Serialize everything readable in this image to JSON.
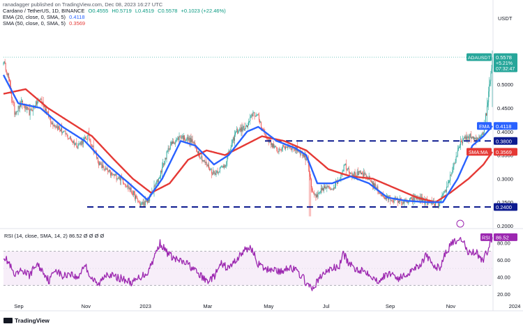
{
  "header": {
    "publisher": "ranadagger published on TradingView.com, Dec 08, 2023 16:27 UTC",
    "symbol": "Cardano / TetherUS, 1D, BINANCE",
    "ohlc": {
      "o": "O0.4555",
      "h": "H0.5719",
      "l": "L0.4519",
      "c": "C0.5578",
      "chg": "+0.1023 (+22.46%)"
    },
    "ema_label": "EMA (20, close, 0, SMA, 5)",
    "ema_value": "0.4118",
    "sma_label": "SMA (50, close, 0, SMA, 5)",
    "sma_value": "0.3569",
    "currency": "USDT"
  },
  "branding": {
    "logo_text": "TradingView"
  },
  "colors": {
    "up": "#26a69a",
    "down": "#ef5350",
    "ema": "#2962ff",
    "sma": "#e53935",
    "rsi": "#9c27b0",
    "level": "#0d1b8f"
  },
  "chart_data": [
    {
      "type": "candlestick",
      "title": "Cardano / TetherUS, 1D, BINANCE",
      "ylabel": "USDT",
      "ylim": [
        0.2,
        0.62
      ],
      "y_ticks": [
        "0.5000",
        "0.4500",
        "0.4000",
        "0.3500",
        "0.3000",
        "0.2500",
        "0.2000"
      ],
      "x_ticks": [
        "Sep",
        "Nov",
        "2023",
        "Mar",
        "May",
        "Jul",
        "Sep",
        "Nov",
        "2024"
      ],
      "x_tick_index": [
        22,
        113,
        192,
        278,
        360,
        440,
        525,
        607,
        692
      ],
      "keyframes": {
        "price": [
          [
            0,
            0.55
          ],
          [
            6,
            0.52
          ],
          [
            15,
            0.44
          ],
          [
            25,
            0.46
          ],
          [
            35,
            0.44
          ],
          [
            50,
            0.47
          ],
          [
            65,
            0.42
          ],
          [
            80,
            0.4
          ],
          [
            100,
            0.37
          ],
          [
            115,
            0.39
          ],
          [
            130,
            0.33
          ],
          [
            145,
            0.31
          ],
          [
            160,
            0.3
          ],
          [
            175,
            0.27
          ],
          [
            185,
            0.245
          ],
          [
            195,
            0.25
          ],
          [
            210,
            0.3
          ],
          [
            225,
            0.37
          ],
          [
            240,
            0.39
          ],
          [
            255,
            0.38
          ],
          [
            270,
            0.34
          ],
          [
            285,
            0.31
          ],
          [
            300,
            0.33
          ],
          [
            315,
            0.4
          ],
          [
            330,
            0.41
          ],
          [
            338,
            0.44
          ],
          [
            345,
            0.43
          ],
          [
            355,
            0.39
          ],
          [
            370,
            0.36
          ],
          [
            385,
            0.37
          ],
          [
            400,
            0.36
          ],
          [
            412,
            0.34
          ],
          [
            418,
            0.27
          ],
          [
            425,
            0.26
          ],
          [
            432,
            0.28
          ],
          [
            445,
            0.28
          ],
          [
            455,
            0.3
          ],
          [
            462,
            0.33
          ],
          [
            472,
            0.31
          ],
          [
            485,
            0.31
          ],
          [
            495,
            0.3
          ],
          [
            505,
            0.28
          ],
          [
            515,
            0.26
          ],
          [
            530,
            0.255
          ],
          [
            545,
            0.25
          ],
          [
            560,
            0.26
          ],
          [
            575,
            0.25
          ],
          [
            590,
            0.245
          ],
          [
            600,
            0.28
          ],
          [
            610,
            0.33
          ],
          [
            620,
            0.38
          ],
          [
            632,
            0.39
          ],
          [
            640,
            0.38
          ],
          [
            650,
            0.4
          ],
          [
            655,
            0.45
          ],
          [
            658,
            0.5
          ],
          [
            662,
            0.558
          ]
        ],
        "ema20": [
          [
            0,
            0.52
          ],
          [
            20,
            0.46
          ],
          [
            50,
            0.45
          ],
          [
            80,
            0.41
          ],
          [
            110,
            0.38
          ],
          [
            140,
            0.33
          ],
          [
            170,
            0.29
          ],
          [
            195,
            0.255
          ],
          [
            215,
            0.3
          ],
          [
            240,
            0.38
          ],
          [
            260,
            0.37
          ],
          [
            285,
            0.33
          ],
          [
            305,
            0.35
          ],
          [
            330,
            0.4
          ],
          [
            345,
            0.41
          ],
          [
            370,
            0.38
          ],
          [
            395,
            0.365
          ],
          [
            410,
            0.35
          ],
          [
            425,
            0.29
          ],
          [
            445,
            0.29
          ],
          [
            470,
            0.305
          ],
          [
            495,
            0.29
          ],
          [
            520,
            0.26
          ],
          [
            545,
            0.253
          ],
          [
            575,
            0.25
          ],
          [
            595,
            0.25
          ],
          [
            615,
            0.3
          ],
          [
            635,
            0.37
          ],
          [
            650,
            0.39
          ],
          [
            662,
            0.4118
          ]
        ],
        "sma50": [
          [
            0,
            0.48
          ],
          [
            30,
            0.49
          ],
          [
            60,
            0.45
          ],
          [
            90,
            0.42
          ],
          [
            120,
            0.39
          ],
          [
            150,
            0.34
          ],
          [
            175,
            0.3
          ],
          [
            200,
            0.27
          ],
          [
            225,
            0.29
          ],
          [
            250,
            0.34
          ],
          [
            275,
            0.36
          ],
          [
            300,
            0.35
          ],
          [
            325,
            0.37
          ],
          [
            350,
            0.39
          ],
          [
            380,
            0.38
          ],
          [
            410,
            0.36
          ],
          [
            440,
            0.32
          ],
          [
            470,
            0.305
          ],
          [
            500,
            0.3
          ],
          [
            530,
            0.28
          ],
          [
            560,
            0.26
          ],
          [
            585,
            0.25
          ],
          [
            605,
            0.27
          ],
          [
            630,
            0.3
          ],
          [
            650,
            0.33
          ],
          [
            662,
            0.3569
          ]
        ]
      },
      "levels": [
        {
          "value": 0.38,
          "label": "0.3800"
        },
        {
          "value": 0.24,
          "label": "0.2400"
        }
      ],
      "annotations": [
        {
          "name": "ADAUSDT",
          "value": 0.5578,
          "lines": [
            "ADAUSDT",
            "0.5578",
            "+5.21%",
            "07:32:47"
          ]
        },
        {
          "name": "EMA",
          "value": 0.4118,
          "label": "EMA",
          "value_label": "0.4118"
        },
        {
          "name": "SMA:MA",
          "value": 0.3569,
          "label": "SMA:MA",
          "value_label": "0.3569"
        }
      ]
    },
    {
      "type": "line",
      "title": "RSI (14, close, SMA, 14, 2) 86.52 Ø Ø Ø Ø",
      "ylim": [
        15,
        95
      ],
      "y_ticks": [
        "80.00",
        "60.00",
        "40.00",
        "20.00"
      ],
      "bands": [
        30,
        70
      ],
      "current": {
        "label": "RSI",
        "value": "86.52"
      },
      "keyframes": [
        [
          0,
          65
        ],
        [
          8,
          55
        ],
        [
          15,
          40
        ],
        [
          25,
          48
        ],
        [
          35,
          42
        ],
        [
          45,
          55
        ],
        [
          55,
          45
        ],
        [
          62,
          35
        ],
        [
          70,
          50
        ],
        [
          80,
          40
        ],
        [
          90,
          45
        ],
        [
          100,
          38
        ],
        [
          110,
          55
        ],
        [
          118,
          40
        ],
        [
          128,
          30
        ],
        [
          140,
          45
        ],
        [
          150,
          40
        ],
        [
          160,
          38
        ],
        [
          175,
          33
        ],
        [
          185,
          40
        ],
        [
          195,
          45
        ],
        [
          205,
          65
        ],
        [
          212,
          80
        ],
        [
          220,
          70
        ],
        [
          230,
          62
        ],
        [
          240,
          58
        ],
        [
          250,
          55
        ],
        [
          262,
          45
        ],
        [
          275,
          35
        ],
        [
          285,
          40
        ],
        [
          295,
          55
        ],
        [
          305,
          50
        ],
        [
          315,
          60
        ],
        [
          325,
          70
        ],
        [
          335,
          75
        ],
        [
          345,
          55
        ],
        [
          355,
          48
        ],
        [
          365,
          50
        ],
        [
          375,
          45
        ],
        [
          385,
          52
        ],
        [
          395,
          48
        ],
        [
          405,
          40
        ],
        [
          412,
          30
        ],
        [
          418,
          25
        ],
        [
          425,
          35
        ],
        [
          435,
          45
        ],
        [
          445,
          50
        ],
        [
          455,
          52
        ],
        [
          460,
          68
        ],
        [
          468,
          55
        ],
        [
          475,
          50
        ],
        [
          485,
          48
        ],
        [
          495,
          45
        ],
        [
          505,
          35
        ],
        [
          515,
          40
        ],
        [
          525,
          45
        ],
        [
          535,
          38
        ],
        [
          545,
          42
        ],
        [
          555,
          50
        ],
        [
          565,
          55
        ],
        [
          572,
          65
        ],
        [
          580,
          55
        ],
        [
          590,
          50
        ],
        [
          600,
          70
        ],
        [
          610,
          82
        ],
        [
          615,
          78
        ],
        [
          620,
          85
        ],
        [
          630,
          68
        ],
        [
          640,
          70
        ],
        [
          645,
          62
        ],
        [
          650,
          60
        ],
        [
          655,
          70
        ],
        [
          662,
          86.52
        ]
      ]
    }
  ]
}
